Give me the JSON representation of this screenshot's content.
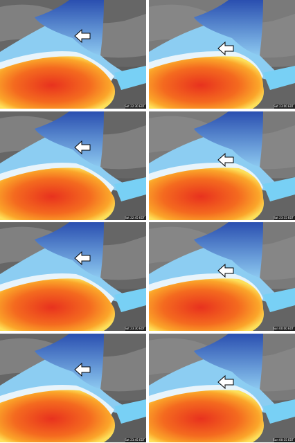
{
  "panels": [
    {
      "timestamp": "Sat 22:30 EDT"
    },
    {
      "timestamp": "Sat 23:00 EDT"
    },
    {
      "timestamp": "Sat 22:45 EDT"
    },
    {
      "timestamp": "Sat 23:15 EDT"
    },
    {
      "timestamp": "Sat 23:30 EDT"
    },
    {
      "timestamp": "Sun 00:00 EDT"
    },
    {
      "timestamp": "Sat 23:45 EDT"
    },
    {
      "timestamp": "Sun 00:15 EDT"
    }
  ]
}
